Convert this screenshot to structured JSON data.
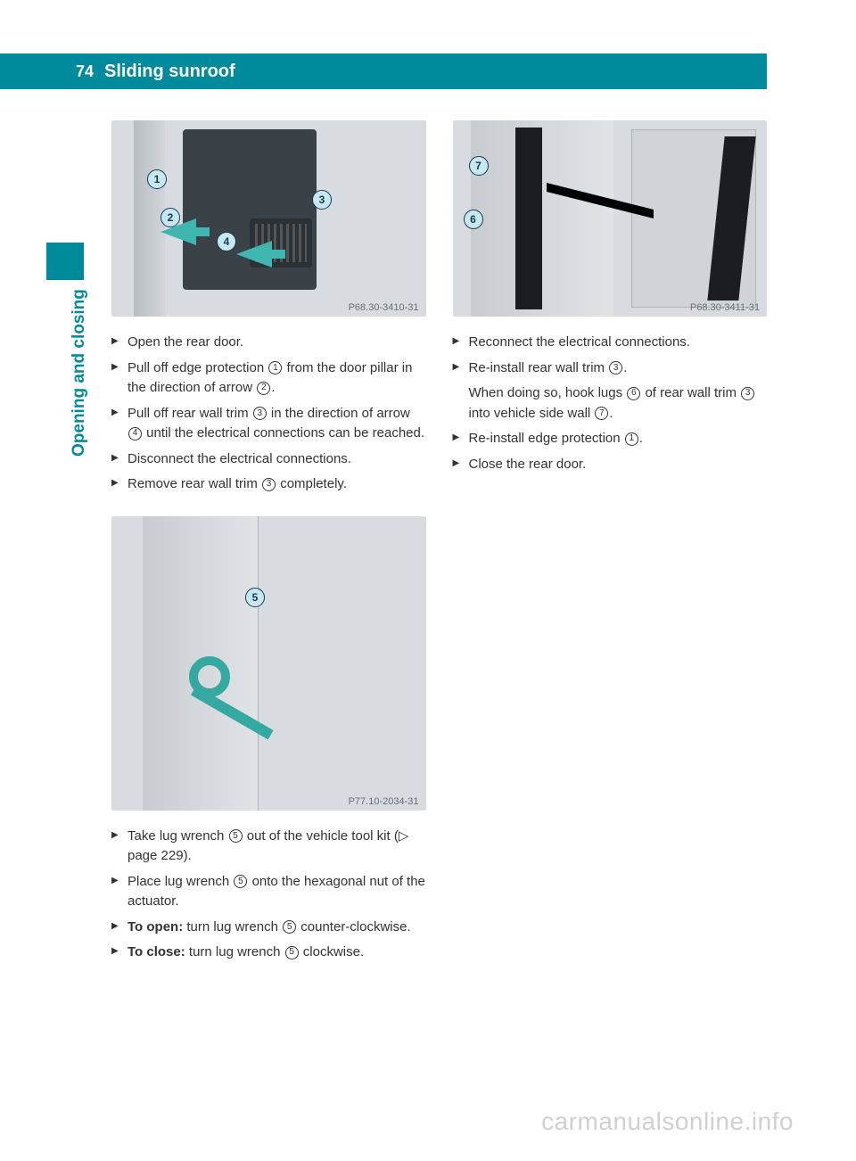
{
  "header": {
    "page_number": "74",
    "section_title": "Sliding sunroof"
  },
  "side_label": "Opening and closing",
  "colors": {
    "brand": "#008b9c",
    "text": "#333333",
    "fig_bg": "#d8dce0",
    "fig_label": "#6a6f73",
    "callout_fill": "#c5e8f4",
    "callout_border": "#1a3a4a",
    "watermark": "rgba(120,120,120,0.35)"
  },
  "figures": {
    "a": {
      "label": "P68.30-3410-31",
      "callouts": [
        "1",
        "2",
        "3",
        "4"
      ]
    },
    "b": {
      "label": "P77.10-2034-31",
      "callouts": [
        "5"
      ]
    },
    "c": {
      "label": "P68.30-3411-31",
      "callouts": [
        "6",
        "7"
      ]
    }
  },
  "left_steps_1": [
    {
      "text": "Open the rear door."
    },
    {
      "parts": [
        "Pull off edge protection ",
        {
          "c": "1"
        },
        " from the door pillar in the direction of arrow ",
        {
          "c": "2"
        },
        "."
      ]
    },
    {
      "parts": [
        "Pull off rear wall trim ",
        {
          "c": "3"
        },
        " in the direction of arrow ",
        {
          "c": "4"
        },
        " until the electrical connections can be reached."
      ]
    },
    {
      "text": "Disconnect the electrical connections."
    },
    {
      "parts": [
        "Remove rear wall trim ",
        {
          "c": "3"
        },
        " completely."
      ]
    }
  ],
  "left_steps_2": [
    {
      "parts": [
        "Take lug wrench ",
        {
          "c": "5"
        },
        " out of the vehicle tool kit (▷ page 229)."
      ]
    },
    {
      "parts": [
        "Place lug wrench ",
        {
          "c": "5"
        },
        " onto the hexagonal nut of the actuator."
      ]
    },
    {
      "parts": [
        {
          "b": "To open:"
        },
        " turn lug wrench ",
        {
          "c": "5"
        },
        " counter-clockwise."
      ]
    },
    {
      "parts": [
        {
          "b": "To close:"
        },
        " turn lug wrench ",
        {
          "c": "5"
        },
        " clockwise."
      ]
    }
  ],
  "right_steps": [
    {
      "text": "Reconnect the electrical connections."
    },
    {
      "parts": [
        "Re-install rear wall trim ",
        {
          "c": "3"
        },
        "."
      ]
    },
    {
      "no_marker": true,
      "parts": [
        "When doing so, hook lugs ",
        {
          "c": "6"
        },
        " of rear wall trim ",
        {
          "c": "3"
        },
        " into vehicle side wall ",
        {
          "c": "7"
        },
        "."
      ]
    },
    {
      "parts": [
        "Re-install edge protection ",
        {
          "c": "1"
        },
        "."
      ]
    },
    {
      "text": "Close the rear door."
    }
  ],
  "watermark": "carmanualsonline.info"
}
